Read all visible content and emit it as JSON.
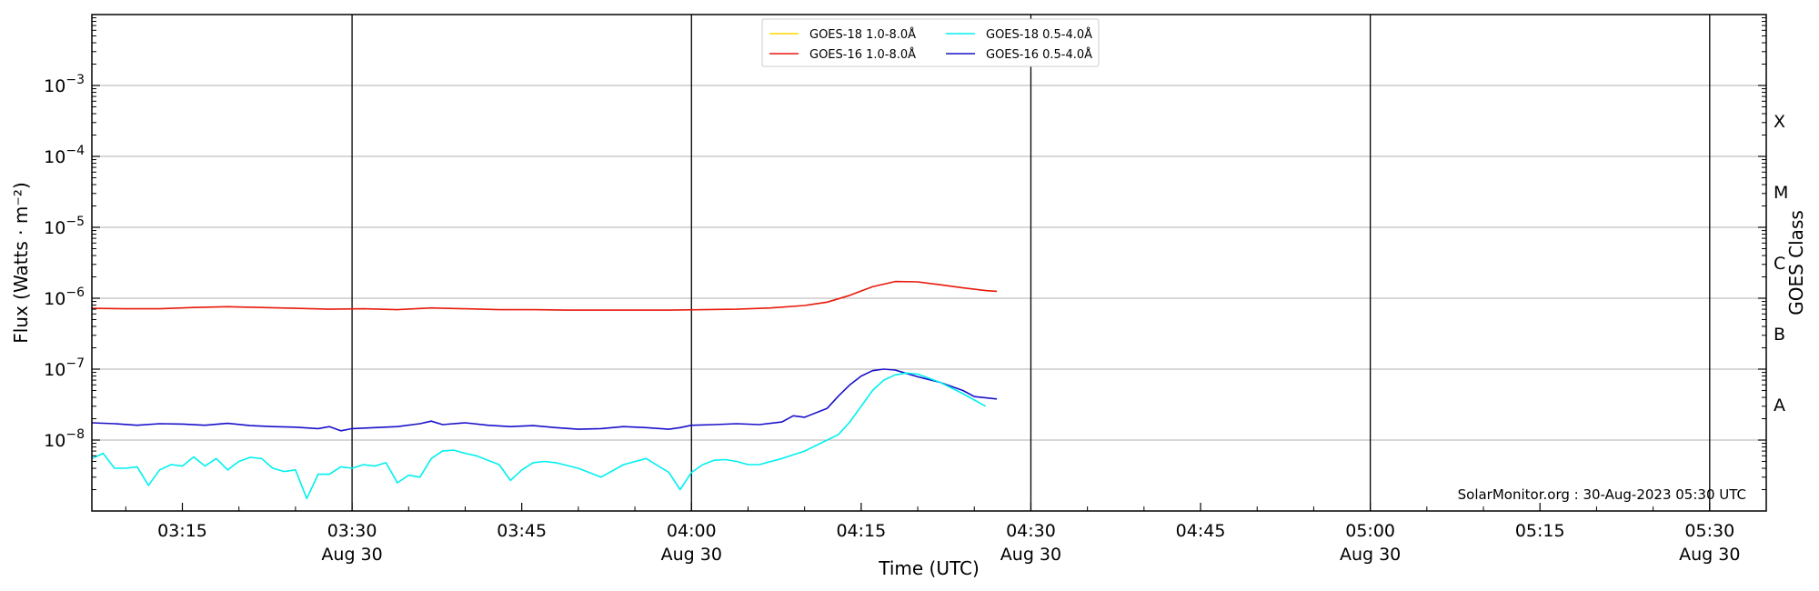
{
  "chart_data": {
    "type": "line",
    "xlabel": "Time (UTC)",
    "ylabel": "Flux (Watts · m⁻²)",
    "right_label": "GOES Class",
    "credit": "SolarMonitor.org : 30-Aug-2023 05:30 UTC",
    "y_scale": "log",
    "ylim": [
      1e-09,
      0.01
    ],
    "xlim": [
      "03:07",
      "05:35"
    ],
    "y_ticks": [
      {
        "value": 1e-08,
        "base": "10",
        "exp": "−8"
      },
      {
        "value": 1e-07,
        "base": "10",
        "exp": "−7"
      },
      {
        "value": 1e-06,
        "base": "10",
        "exp": "−6"
      },
      {
        "value": 1e-05,
        "base": "10",
        "exp": "−5"
      },
      {
        "value": 0.0001,
        "base": "10",
        "exp": "−4"
      },
      {
        "value": 0.001,
        "base": "10",
        "exp": "−3"
      }
    ],
    "x_ticks": [
      {
        "time": "03:15",
        "label": "03:15",
        "date": ""
      },
      {
        "time": "03:30",
        "label": "03:30",
        "date": "Aug 30"
      },
      {
        "time": "03:45",
        "label": "03:45",
        "date": ""
      },
      {
        "time": "04:00",
        "label": "04:00",
        "date": "Aug 30"
      },
      {
        "time": "04:15",
        "label": "04:15",
        "date": ""
      },
      {
        "time": "04:30",
        "label": "04:30",
        "date": "Aug 30"
      },
      {
        "time": "04:45",
        "label": "04:45",
        "date": ""
      },
      {
        "time": "05:00",
        "label": "05:00",
        "date": "Aug 30"
      },
      {
        "time": "05:15",
        "label": "05:15",
        "date": ""
      },
      {
        "time": "05:30",
        "label": "05:30",
        "date": "Aug 30"
      }
    ],
    "vlines": [
      "03:30",
      "04:00",
      "04:30",
      "05:00",
      "05:30"
    ],
    "grid_y": true,
    "goes_classes": [
      {
        "label": "A",
        "value": 3.16e-08
      },
      {
        "label": "B",
        "value": 3.16e-07
      },
      {
        "label": "C",
        "value": 3.16e-06
      },
      {
        "label": "M",
        "value": 3.16e-05
      },
      {
        "label": "X",
        "value": 0.000316
      }
    ],
    "legend_position": "top-center",
    "legend": [
      {
        "name": "GOES-18 1.0-8.0Å",
        "color": "#ffd700",
        "col": 0,
        "row": 0
      },
      {
        "name": "GOES-16 1.0-8.0Å",
        "color": "#e8190a",
        "col": 0,
        "row": 1
      },
      {
        "name": "GOES-18 0.5-4.0Å",
        "color": "#00f0f0",
        "col": 1,
        "row": 0
      },
      {
        "name": "GOES-16 0.5-4.0Å",
        "color": "#1a10c8",
        "col": 1,
        "row": 1
      }
    ],
    "series": [
      {
        "name": "GOES-16 1.0-8.0Å",
        "color": "#e8190a",
        "x": [
          "03:07",
          "03:10",
          "03:13",
          "03:16",
          "03:19",
          "03:22",
          "03:25",
          "03:28",
          "03:31",
          "03:34",
          "03:37",
          "03:40",
          "03:43",
          "03:46",
          "03:49",
          "03:52",
          "03:55",
          "03:58",
          "04:01",
          "04:04",
          "04:07",
          "04:10",
          "04:12",
          "04:14",
          "04:16",
          "04:18",
          "04:20",
          "04:22",
          "04:24",
          "04:26",
          "04:27"
        ],
        "y": [
          7.2e-07,
          7.1e-07,
          7.1e-07,
          7.4e-07,
          7.6e-07,
          7.4e-07,
          7.2e-07,
          7e-07,
          7.1e-07,
          6.9e-07,
          7.3e-07,
          7.1e-07,
          6.9e-07,
          6.9e-07,
          6.8e-07,
          6.8e-07,
          6.8e-07,
          6.8e-07,
          6.9e-07,
          7e-07,
          7.3e-07,
          7.9e-07,
          8.8e-07,
          1.1e-06,
          1.45e-06,
          1.72e-06,
          1.7e-06,
          1.55e-06,
          1.4e-06,
          1.28e-06,
          1.25e-06
        ]
      },
      {
        "name": "GOES-16 0.5-4.0Å",
        "color": "#1a10c8",
        "x": [
          "03:07",
          "03:09",
          "03:11",
          "03:13",
          "03:15",
          "03:17",
          "03:19",
          "03:21",
          "03:23",
          "03:25",
          "03:27",
          "03:28",
          "03:29",
          "03:30",
          "03:32",
          "03:34",
          "03:36",
          "03:37",
          "03:38",
          "03:40",
          "03:42",
          "03:44",
          "03:46",
          "03:48",
          "03:50",
          "03:52",
          "03:54",
          "03:56",
          "03:58",
          "03:59",
          "04:00",
          "04:02",
          "04:04",
          "04:06",
          "04:08",
          "04:09",
          "04:10",
          "04:12",
          "04:13",
          "04:14",
          "04:15",
          "04:16",
          "04:17",
          "04:18",
          "04:19",
          "04:20",
          "04:22",
          "04:24",
          "04:25",
          "04:27"
        ],
        "y": [
          1.75e-08,
          1.7e-08,
          1.62e-08,
          1.7e-08,
          1.68e-08,
          1.62e-08,
          1.72e-08,
          1.6e-08,
          1.55e-08,
          1.52e-08,
          1.45e-08,
          1.55e-08,
          1.35e-08,
          1.45e-08,
          1.5e-08,
          1.55e-08,
          1.7e-08,
          1.85e-08,
          1.65e-08,
          1.75e-08,
          1.62e-08,
          1.55e-08,
          1.6e-08,
          1.5e-08,
          1.42e-08,
          1.45e-08,
          1.55e-08,
          1.5e-08,
          1.42e-08,
          1.5e-08,
          1.62e-08,
          1.65e-08,
          1.7e-08,
          1.65e-08,
          1.8e-08,
          2.2e-08,
          2.1e-08,
          2.8e-08,
          4.2e-08,
          6e-08,
          8e-08,
          9.5e-08,
          1e-07,
          9.7e-08,
          8.7e-08,
          7.8e-08,
          6.5e-08,
          5e-08,
          4.1e-08,
          3.8e-08
        ]
      },
      {
        "name": "GOES-18 0.5-4.0Å",
        "color": "#00f0f0",
        "x": [
          "03:07",
          "03:08",
          "03:09",
          "03:10",
          "03:11",
          "03:12",
          "03:13",
          "03:14",
          "03:15",
          "03:16",
          "03:17",
          "03:18",
          "03:19",
          "03:20",
          "03:21",
          "03:22",
          "03:23",
          "03:24",
          "03:25",
          "03:26",
          "03:27",
          "03:28",
          "03:29",
          "03:30",
          "03:31",
          "03:32",
          "03:33",
          "03:34",
          "03:35",
          "03:36",
          "03:37",
          "03:38",
          "03:39",
          "03:40",
          "03:41",
          "03:42",
          "03:43",
          "03:44",
          "03:45",
          "03:46",
          "03:47",
          "03:48",
          "03:50",
          "03:52",
          "03:54",
          "03:56",
          "03:58",
          "03:59",
          "04:00",
          "04:01",
          "04:02",
          "04:03",
          "04:04",
          "04:05",
          "04:06",
          "04:08",
          "04:10",
          "04:12",
          "04:13",
          "04:14",
          "04:15",
          "04:16",
          "04:17",
          "04:18",
          "04:19",
          "04:20",
          "04:22",
          "04:24",
          "04:26"
        ],
        "y": [
          5.5e-09,
          6.5e-09,
          4e-09,
          4e-09,
          4.2e-09,
          2.3e-09,
          3.8e-09,
          4.5e-09,
          4.3e-09,
          5.8e-09,
          4.3e-09,
          5.5e-09,
          3.8e-09,
          5e-09,
          5.7e-09,
          5.5e-09,
          4e-09,
          3.6e-09,
          3.8e-09,
          1.5e-09,
          3.3e-09,
          3.3e-09,
          4.2e-09,
          4e-09,
          4.5e-09,
          4.3e-09,
          4.8e-09,
          2.5e-09,
          3.2e-09,
          3e-09,
          5.5e-09,
          7e-09,
          7.2e-09,
          6.5e-09,
          6e-09,
          5.2e-09,
          4.5e-09,
          2.7e-09,
          3.8e-09,
          4.8e-09,
          5e-09,
          4.8e-09,
          4e-09,
          3e-09,
          4.5e-09,
          5.5e-09,
          3.5e-09,
          2e-09,
          3.5e-09,
          4.5e-09,
          5.2e-09,
          5.3e-09,
          5e-09,
          4.5e-09,
          4.5e-09,
          5.5e-09,
          7e-09,
          1e-08,
          1.2e-08,
          1.8e-08,
          3e-08,
          5e-08,
          7e-08,
          8.3e-08,
          8.8e-08,
          8.5e-08,
          6.5e-08,
          4.5e-08,
          3e-08
        ]
      }
    ]
  }
}
